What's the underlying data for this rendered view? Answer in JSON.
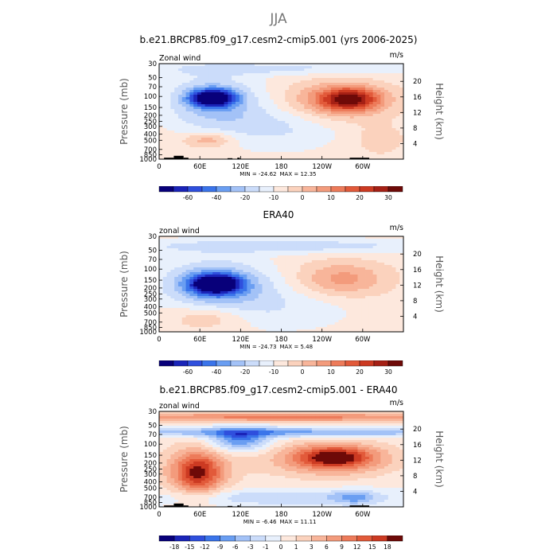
{
  "page_title": "JJA",
  "chart_data": [
    {
      "type": "heatmap",
      "title": "b.e21.BRCP85.f09_g17.cesm2-cmip5.001 (yrs 2006-2025)",
      "variable": "Zonal wind",
      "units": "m/s",
      "xlabel": "",
      "ylabel": "Pressure (mb)",
      "ylabel_right": "Height (km)",
      "x_ticks": [
        "0",
        "60E",
        "120E",
        "180",
        "120W",
        "60W"
      ],
      "y_ticks": [
        "30",
        "50",
        "70",
        "100",
        "150",
        "200",
        "250",
        "300",
        "400",
        "500",
        "700",
        "850",
        "1000"
      ],
      "y_ticks_right": [
        "20",
        "16",
        "12",
        "8",
        "4"
      ],
      "min_label": "MIN = -24.62",
      "max_label": "MAX = 12.35",
      "min": -24.62,
      "max": 12.35,
      "colorbar_levels": [
        "-60",
        "-40",
        "-20",
        "-10",
        "0",
        "10",
        "20",
        "30"
      ],
      "colorbar_colors": [
        "#08007a",
        "#1a24b8",
        "#2f4fdd",
        "#3a74ea",
        "#6a9ef2",
        "#a3c2f7",
        "#cbdcfa",
        "#e8f0fc",
        "#fde8dd",
        "#fbd2bd",
        "#f8b59a",
        "#f39b7c",
        "#ed7b5a",
        "#e25a3a",
        "#cc3a22",
        "#a52015",
        "#6e0a08"
      ]
    },
    {
      "type": "heatmap",
      "title": "ERA40",
      "variable": "zonal wind",
      "units": "m/s",
      "xlabel": "",
      "ylabel": "Pressure (mb)",
      "ylabel_right": "Height (km)",
      "x_ticks": [
        "0",
        "60E",
        "120E",
        "180",
        "120W",
        "60W"
      ],
      "y_ticks": [
        "30",
        "50",
        "70",
        "100",
        "150",
        "200",
        "250",
        "300",
        "400",
        "500",
        "700",
        "850",
        "1000"
      ],
      "y_ticks_right": [
        "20",
        "16",
        "12",
        "8",
        "4"
      ],
      "min_label": "MIN = -24.73",
      "max_label": "MAX = 5.48",
      "min": -24.73,
      "max": 5.48,
      "colorbar_levels": [
        "-60",
        "-40",
        "-20",
        "-10",
        "0",
        "10",
        "20",
        "30"
      ],
      "colorbar_colors": [
        "#08007a",
        "#1a24b8",
        "#2f4fdd",
        "#3a74ea",
        "#6a9ef2",
        "#a3c2f7",
        "#cbdcfa",
        "#e8f0fc",
        "#fde8dd",
        "#fbd2bd",
        "#f8b59a",
        "#f39b7c",
        "#ed7b5a",
        "#e25a3a",
        "#cc3a22",
        "#a52015",
        "#6e0a08"
      ]
    },
    {
      "type": "heatmap",
      "title": "b.e21.BRCP85.f09_g17.cesm2-cmip5.001 - ERA40",
      "variable": "zonal wind",
      "units": "m/s",
      "xlabel": "",
      "ylabel": "Pressure (mb)",
      "ylabel_right": "Height (km)",
      "x_ticks": [
        "0",
        "60E",
        "120E",
        "180",
        "120W",
        "60W"
      ],
      "y_ticks": [
        "30",
        "50",
        "70",
        "100",
        "150",
        "200",
        "250",
        "300",
        "400",
        "500",
        "700",
        "850",
        "1000"
      ],
      "y_ticks_right": [
        "20",
        "16",
        "12",
        "8",
        "4"
      ],
      "min_label": "MIN = -6.46",
      "max_label": "MAX = 11.11",
      "min": -6.46,
      "max": 11.11,
      "colorbar_levels": [
        "-18",
        "-15",
        "-12",
        "-9",
        "-6",
        "-3",
        "-1",
        "0",
        "1",
        "3",
        "6",
        "9",
        "12",
        "15",
        "18"
      ],
      "colorbar_colors": [
        "#08007a",
        "#1a24b8",
        "#2f4fdd",
        "#3a74ea",
        "#6a9ef2",
        "#a3c2f7",
        "#cbdcfa",
        "#e8f0fc",
        "#fde8dd",
        "#fbd2bd",
        "#f8b59a",
        "#f39b7c",
        "#ed7b5a",
        "#e25a3a",
        "#cc3a22",
        "#6e0a08"
      ]
    }
  ]
}
